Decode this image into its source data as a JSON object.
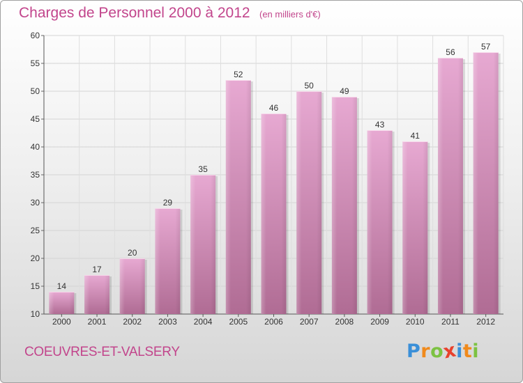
{
  "title": "Charges de Personnel 2000 à 2012",
  "subtitle": "(en milliers d'€)",
  "commune": "COEUVRES-ET-VALSERY",
  "logo": {
    "text": "Proxiti",
    "letters": [
      "P",
      "r",
      "o",
      "x",
      "i",
      "t",
      "i"
    ],
    "letter_colors": [
      "#3a8fd8",
      "#f08a1c",
      "#7cc242",
      "#e8412c",
      "#3a8fd8",
      "#f08a1c",
      "#7cc242"
    ]
  },
  "colors": {
    "bar_top": "#e7a9d2",
    "bar_bottom": "#b06c94",
    "text_accent": "#c2458c"
  },
  "chart_data": {
    "type": "bar",
    "categories": [
      "2000",
      "2001",
      "2002",
      "2003",
      "2004",
      "2005",
      "2006",
      "2007",
      "2008",
      "2009",
      "2010",
      "2011",
      "2012"
    ],
    "values": [
      14,
      17,
      20,
      29,
      35,
      52,
      46,
      50,
      49,
      43,
      41,
      56,
      57
    ],
    "value_labels": [
      "14",
      "17",
      "20",
      "29",
      "35",
      "52",
      "46",
      "50",
      "49",
      "43",
      "41",
      "56",
      "57"
    ],
    "title": "Charges de Personnel 2000 à 2012",
    "ylim": [
      10,
      60
    ],
    "yticks": [
      10,
      15,
      20,
      25,
      30,
      35,
      40,
      45,
      50,
      55,
      60
    ],
    "ytick_labels": [
      "10",
      "15",
      "20",
      "25",
      "30",
      "35",
      "40",
      "45",
      "50",
      "55",
      "60"
    ],
    "grid": true
  }
}
